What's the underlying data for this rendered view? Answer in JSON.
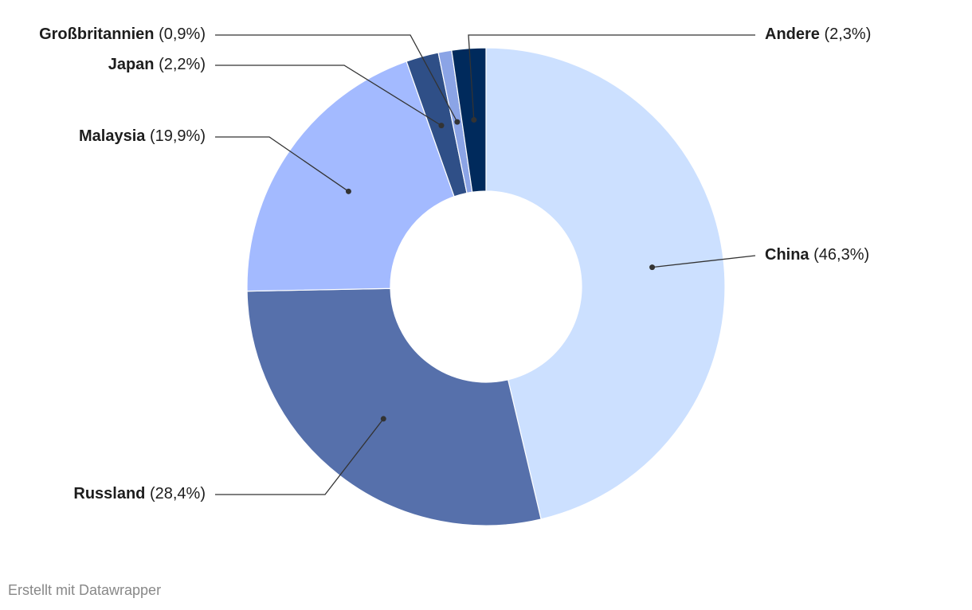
{
  "chart_data": {
    "type": "donut",
    "categories": [
      "China",
      "Russland",
      "Malaysia",
      "Japan",
      "Großbritannien",
      "Andere"
    ],
    "values": [
      46.3,
      28.4,
      19.9,
      2.2,
      0.9,
      2.3
    ],
    "value_labels": [
      "(46,3%)",
      "(28,4%)",
      "(19,9%)",
      "(2,2%)",
      "(0,9%)",
      "(2,3%)"
    ],
    "colors": [
      "#cce0ff",
      "#5670ab",
      "#a3baff",
      "#2f4f87",
      "#8ba4e6",
      "#002a5c"
    ],
    "credit": "Erstellt mit Datawrapper"
  }
}
